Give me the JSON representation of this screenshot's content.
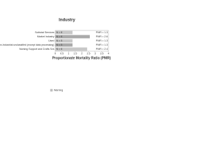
{
  "chart_data": {
    "type": "hbar",
    "title": "Industry",
    "categories": [
      "Subtotal Services",
      "Market Industry",
      "Used",
      "Non-Industrial unclassified (except data processing)",
      "Nursing Support and Crafts Svs"
    ],
    "series": [
      {
        "name": "Warning",
        "color": "#c8c8c8",
        "values": [
          1.3,
          2.6,
          1.3,
          1.3,
          2.4
        ],
        "value_labels": [
          "PMR = 1.3",
          "PMR = 2.6",
          "PMR = 1.3",
          "PMR = 1.3",
          "PMR = 2.4"
        ],
        "n_labels": [
          "N = 8",
          "N = 6",
          "N = 5",
          "N = 5",
          "N = 6"
        ]
      }
    ],
    "xlabel": "Proportionate Mortality Ratio (PMR)",
    "xlim": [
      0,
      4
    ],
    "xticks": [
      0,
      0.5,
      1,
      1.5,
      2,
      2.5,
      3,
      3.5,
      4
    ]
  }
}
